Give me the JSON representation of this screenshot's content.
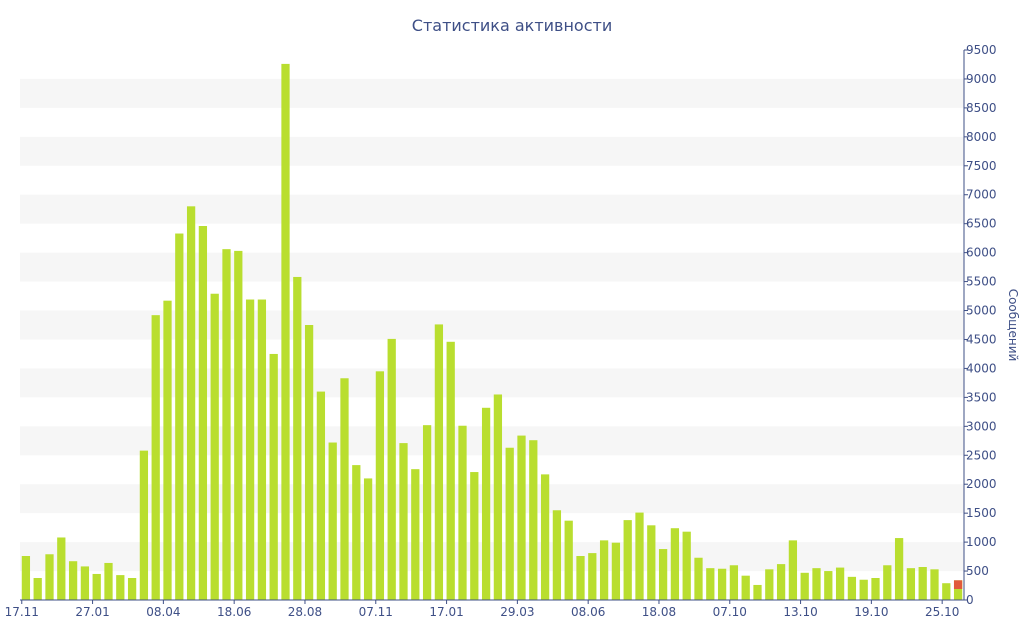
{
  "chart_data": {
    "type": "bar",
    "title": "Статистика активности",
    "ylabel": "Сообщений",
    "xlabel": "",
    "ylim": [
      0,
      9500
    ],
    "ytick_step": 500,
    "grid": "alternating horizontal bands",
    "y_axis_side": "right",
    "colors": {
      "bar": "#b9de2f",
      "highlight": "#e15a3a",
      "band": "#f6f6f6",
      "axis": "#3e4f86",
      "title": "#3e4f86"
    },
    "x_tick_labels": [
      {
        "label": "17.11",
        "index": 0
      },
      {
        "label": "27.01",
        "index": 6
      },
      {
        "label": "08.04",
        "index": 12
      },
      {
        "label": "18.06",
        "index": 18
      },
      {
        "label": "28.08",
        "index": 24
      },
      {
        "label": "07.11",
        "index": 30
      },
      {
        "label": "17.01",
        "index": 36
      },
      {
        "label": "29.03",
        "index": 42
      },
      {
        "label": "08.06",
        "index": 48
      },
      {
        "label": "18.08",
        "index": 54
      },
      {
        "label": "07.10",
        "index": 60
      },
      {
        "label": "13.10",
        "index": 66
      },
      {
        "label": "19.10",
        "index": 72
      },
      {
        "label": "25.10",
        "index": 78
      }
    ],
    "values": [
      760,
      380,
      790,
      1080,
      670,
      580,
      450,
      640,
      430,
      380,
      2580,
      4920,
      5170,
      6330,
      6800,
      6460,
      5290,
      6060,
      6030,
      5190,
      5190,
      4250,
      9260,
      5580,
      4750,
      3600,
      2720,
      3830,
      2330,
      2100,
      3950,
      4510,
      2710,
      2260,
      3020,
      4760,
      4460,
      3010,
      2210,
      3320,
      3550,
      2630,
      2840,
      2760,
      2170,
      1550,
      1370,
      760,
      810,
      1030,
      990,
      1380,
      1510,
      1290,
      880,
      1240,
      1180,
      730,
      550,
      540,
      600,
      420,
      260,
      530,
      620,
      1030,
      470,
      550,
      500,
      560,
      400,
      350,
      380,
      600,
      1070,
      550,
      570,
      530,
      290,
      340
    ],
    "highlight": {
      "index": 79,
      "value": 340,
      "base_value": 190
    }
  }
}
